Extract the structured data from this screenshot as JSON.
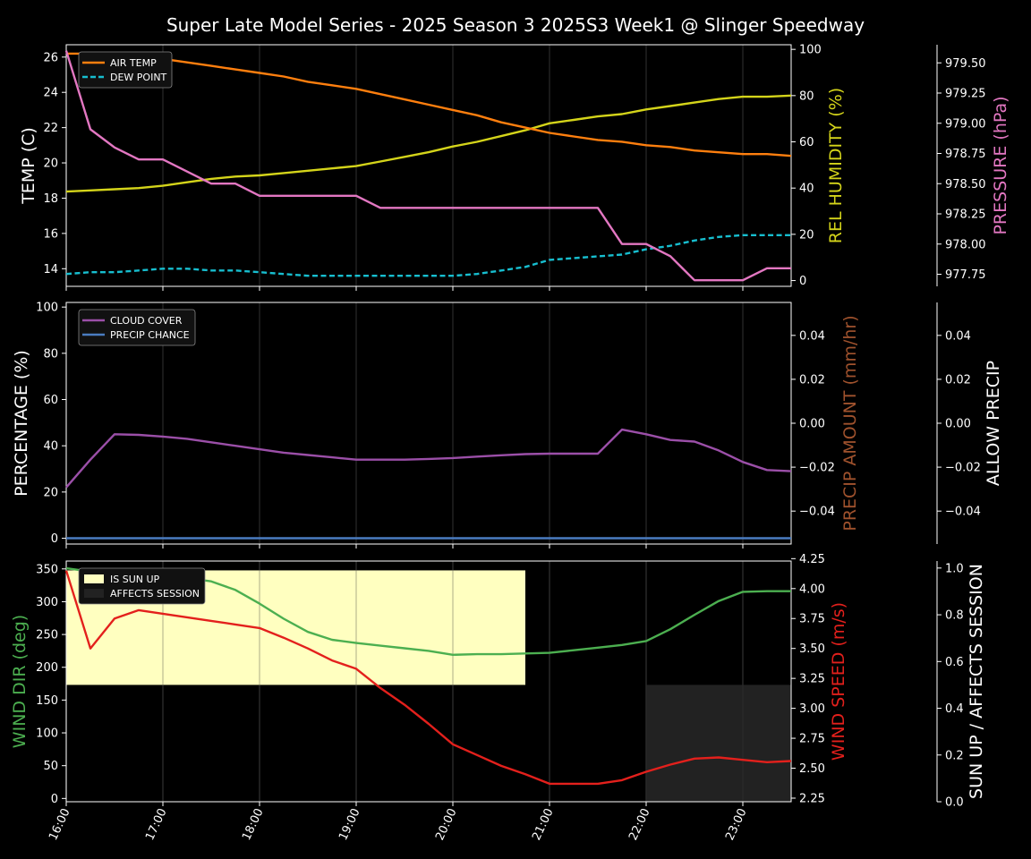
{
  "title": "Super Late Model Series - 2025 Season 3 2025S3 Week1 @ Slinger Speedway",
  "x_ticks": [
    "16:00",
    "17:00",
    "18:00",
    "19:00",
    "20:00",
    "21:00",
    "22:00",
    "23:00"
  ],
  "colors": {
    "air_temp": "#ff7f0e",
    "dew_point": "#17becf",
    "humidity": "#d4d41a",
    "pressure": "#e377c2",
    "cloud": "#9b4fa8",
    "precip_chance": "#4a7cc0",
    "precip_amount": "#a0522d",
    "wind_dir": "#4caf50",
    "wind_speed": "#e3201c",
    "sun_up": "#ffffc0",
    "affects": "#222222"
  },
  "chart_data": [
    {
      "type": "line",
      "x": [
        "16:00",
        "16:15",
        "16:30",
        "16:45",
        "17:00",
        "17:15",
        "17:30",
        "17:45",
        "18:00",
        "18:15",
        "18:30",
        "18:45",
        "19:00",
        "19:15",
        "19:30",
        "19:45",
        "20:00",
        "20:15",
        "20:30",
        "20:45",
        "21:00",
        "21:15",
        "21:30",
        "21:45",
        "22:00",
        "22:15",
        "22:30",
        "22:45",
        "23:00",
        "23:15",
        "23:30"
      ],
      "ylabel": "TEMP (C)",
      "ylim": [
        13.0,
        26.7
      ],
      "yticks": [
        14,
        16,
        18,
        20,
        22,
        24,
        26
      ],
      "y2label": "REL HUMIDITY (%)",
      "y2lim": [
        -2.5,
        102
      ],
      "y2ticks": [
        0,
        20,
        40,
        60,
        80,
        100
      ],
      "y3label": "PRESSURE (hPa)",
      "y3lim": [
        977.65,
        979.65
      ],
      "y3ticks": [
        "977.75",
        "978.00",
        "978.25",
        "978.50",
        "978.75",
        "979.00",
        "979.25",
        "979.50"
      ],
      "legend": [
        "AIR TEMP",
        "DEW POINT"
      ],
      "series": [
        {
          "name": "AIR TEMP",
          "axis": "left",
          "values": [
            26.2,
            26.2,
            26.1,
            26.0,
            25.9,
            25.7,
            25.5,
            25.3,
            25.1,
            24.9,
            24.6,
            24.4,
            24.2,
            23.9,
            23.6,
            23.3,
            23.0,
            22.7,
            22.3,
            22.0,
            21.7,
            21.5,
            21.3,
            21.2,
            21.0,
            20.9,
            20.7,
            20.6,
            20.5,
            20.5,
            20.4
          ]
        },
        {
          "name": "DEW POINT",
          "axis": "left",
          "dashed": true,
          "values": [
            13.7,
            13.8,
            13.8,
            13.9,
            14.0,
            14.0,
            13.9,
            13.9,
            13.8,
            13.7,
            13.6,
            13.6,
            13.6,
            13.6,
            13.6,
            13.6,
            13.6,
            13.7,
            13.9,
            14.1,
            14.5,
            14.6,
            14.7,
            14.8,
            15.1,
            15.3,
            15.6,
            15.8,
            15.9,
            15.9,
            15.9
          ]
        },
        {
          "name": "REL HUMIDITY",
          "axis": "right",
          "values": [
            38.5,
            39,
            39.5,
            40,
            41,
            42.5,
            44,
            45,
            45.5,
            46.5,
            47.5,
            48.5,
            49.5,
            51.5,
            53.5,
            55.5,
            58,
            60,
            62.5,
            65,
            68,
            69.5,
            71,
            72,
            74,
            75.5,
            77,
            78.5,
            79.5,
            79.5,
            80
          ]
        },
        {
          "name": "PRESSURE",
          "axis": "right2",
          "values": [
            979.6,
            978.95,
            978.8,
            978.7,
            978.7,
            978.6,
            978.5,
            978.5,
            978.4,
            978.4,
            978.4,
            978.4,
            978.4,
            978.3,
            978.3,
            978.3,
            978.3,
            978.3,
            978.3,
            978.3,
            978.3,
            978.3,
            978.3,
            978.0,
            978.0,
            977.9,
            977.7,
            977.7,
            977.7,
            977.8,
            977.8
          ]
        }
      ]
    },
    {
      "type": "line",
      "x": [
        "16:00",
        "16:15",
        "16:30",
        "16:45",
        "17:00",
        "17:15",
        "17:30",
        "17:45",
        "18:00",
        "18:15",
        "18:30",
        "18:45",
        "19:00",
        "19:15",
        "19:30",
        "19:45",
        "20:00",
        "20:15",
        "20:30",
        "20:45",
        "21:00",
        "21:15",
        "21:30",
        "21:45",
        "22:00",
        "22:15",
        "22:30",
        "22:45",
        "23:00",
        "23:15",
        "23:30"
      ],
      "ylabel": "PERCENTAGE (%)",
      "ylim": [
        -2.5,
        102
      ],
      "yticks": [
        0,
        20,
        40,
        60,
        80,
        100
      ],
      "y2label": "PRECIP AMOUNT (mm/hr)",
      "y2lim": [
        -0.055,
        0.055
      ],
      "y2ticks": [
        "−0.04",
        "−0.02",
        "0.00",
        "0.02",
        "0.04"
      ],
      "y3label": "ALLOW PRECIP",
      "y3lim": [
        -0.055,
        0.055
      ],
      "y3ticks": [
        "−0.04",
        "−0.02",
        "0.00",
        "0.02",
        "0.04"
      ],
      "legend": [
        "CLOUD COVER",
        "PRECIP CHANCE"
      ],
      "series": [
        {
          "name": "CLOUD COVER",
          "values": [
            22,
            34,
            45,
            44.7,
            44,
            43,
            41.5,
            40,
            38.5,
            37,
            36,
            35,
            34,
            34,
            34,
            34.3,
            34.7,
            35.3,
            35.9,
            36.4,
            36.6,
            36.6,
            36.6,
            47,
            45,
            42.5,
            41.8,
            38,
            33,
            29.5,
            29
          ]
        },
        {
          "name": "PRECIP CHANCE",
          "values": [
            0,
            0,
            0,
            0,
            0,
            0,
            0,
            0,
            0,
            0,
            0,
            0,
            0,
            0,
            0,
            0,
            0,
            0,
            0,
            0,
            0,
            0,
            0,
            0,
            0,
            0,
            0,
            0,
            0,
            0,
            0
          ]
        }
      ]
    },
    {
      "type": "line",
      "x": [
        "16:00",
        "16:15",
        "16:30",
        "16:45",
        "17:00",
        "17:15",
        "17:30",
        "17:45",
        "18:00",
        "18:15",
        "18:30",
        "18:45",
        "19:00",
        "19:15",
        "19:30",
        "19:45",
        "20:00",
        "20:15",
        "20:30",
        "20:45",
        "21:00",
        "21:15",
        "21:30",
        "21:45",
        "22:00",
        "22:15",
        "22:30",
        "22:45",
        "23:00",
        "23:15",
        "23:30"
      ],
      "ylabel": "WIND DIR (deg)",
      "ylim": [
        -5,
        362
      ],
      "yticks": [
        0,
        50,
        100,
        150,
        200,
        250,
        300,
        350
      ],
      "y2label": "WIND SPEED (m/s)",
      "y2lim": [
        2.22,
        4.23
      ],
      "y2ticks": [
        "2.25",
        "2.50",
        "2.75",
        "3.00",
        "3.25",
        "3.50",
        "3.75",
        "4.00",
        "4.25"
      ],
      "y3label": "SUN UP / AFFECTS SESSION",
      "y3lim": [
        0,
        1.03
      ],
      "y3ticks": [
        "0.0",
        "0.2",
        "0.4",
        "0.6",
        "0.8",
        "1.0"
      ],
      "legend": [
        "IS SUN UP",
        "AFFECTS SESSION"
      ],
      "bands": [
        {
          "name": "IS SUN UP",
          "x_start": "16:00",
          "x_end": "20:45",
          "y_from": 0.5,
          "y_to": 0.99
        },
        {
          "name": "AFFECTS SESSION",
          "x_start": "22:00",
          "x_end": "23:30",
          "y_from": 0,
          "y_to": 0.5
        }
      ],
      "series": [
        {
          "name": "WIND DIR",
          "values": [
            351,
            346,
            343,
            341,
            338,
            336,
            331,
            318,
            297,
            274,
            254,
            242,
            237,
            233,
            229,
            225,
            219,
            220,
            220,
            221,
            222,
            226,
            230,
            234,
            240,
            258,
            280,
            301,
            315,
            316,
            316
          ]
        },
        {
          "name": "WIND SPEED",
          "values": [
            4.15,
            3.5,
            3.75,
            3.82,
            3.79,
            3.76,
            3.73,
            3.7,
            3.67,
            3.59,
            3.5,
            3.4,
            3.33,
            3.17,
            3.03,
            2.87,
            2.7,
            2.61,
            2.52,
            2.45,
            2.37,
            2.37,
            2.37,
            2.4,
            2.47,
            2.53,
            2.58,
            2.59,
            2.57,
            2.55,
            2.56
          ]
        }
      ]
    }
  ]
}
